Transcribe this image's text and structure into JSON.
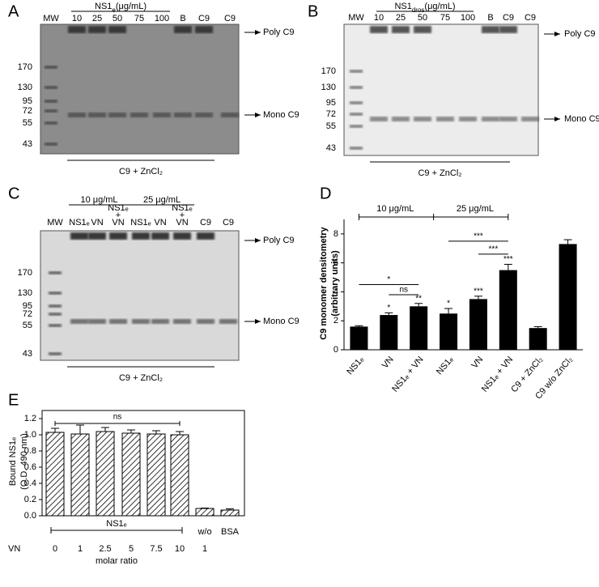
{
  "gels": [
    {
      "panel": "A",
      "headers": [
        [
          "NS1",
          "e",
          "(μg/mL)"
        ]
      ],
      "lanes": [
        [
          "MW"
        ],
        [
          "10"
        ],
        [
          "25"
        ],
        [
          "50"
        ],
        [
          "75"
        ],
        [
          "100"
        ],
        [
          "B"
        ],
        [
          "C9"
        ],
        [
          "C9"
        ]
      ],
      "markers": [
        "170",
        "130",
        "95",
        "72",
        "55",
        "43"
      ],
      "bands": [
        "Poly C9",
        "Mono C9"
      ],
      "condition": "C9 + ZnCl₂"
    },
    {
      "panel": "B",
      "headers": [
        [
          "NS1",
          "dros",
          "(μg/mL)"
        ]
      ],
      "lanes": [
        [
          "MW"
        ],
        [
          "10"
        ],
        [
          "25"
        ],
        [
          "50"
        ],
        [
          "75"
        ],
        [
          "100"
        ],
        [
          "B"
        ],
        [
          "C9"
        ],
        [
          "C9"
        ]
      ],
      "markers": [
        "170",
        "130",
        "95",
        "72",
        "55",
        "43"
      ],
      "bands": [
        "Poly C9",
        "Mono C9"
      ],
      "condition": "C9 + ZnCl₂"
    },
    {
      "panel": "C",
      "headers": [
        [
          "10 μg/mL"
        ],
        [
          "25 μg/mL"
        ]
      ],
      "lanes": [
        [
          "MW"
        ],
        [
          "NS1ₑ"
        ],
        [
          "VN"
        ],
        [
          "NS1ₑ",
          "+",
          "VN"
        ],
        [
          "NS1ₑ"
        ],
        [
          "VN"
        ],
        [
          "NS1ₑ",
          "+",
          "VN"
        ],
        [
          "C9"
        ],
        [
          "C9"
        ]
      ],
      "markers": [
        "170",
        "130",
        "95",
        "72",
        "55",
        "43"
      ],
      "bands": [
        "Poly C9",
        "Mono C9"
      ],
      "condition": "C9 + ZnCl₂"
    }
  ],
  "chart_data": [
    {
      "type": "bar",
      "panel": "D",
      "ylabel": [
        "C9 monomer densitometry",
        "(arbitrary units)"
      ],
      "categories": [
        "NS1ₑ",
        "VN",
        "NS1ₑ + VN",
        "NS1ₑ",
        "VN",
        "NS1ₑ + VN",
        "C9 + ZnCl₂",
        "C9 w/o ZnCl₂"
      ],
      "values": [
        1.6,
        2.4,
        3.0,
        2.5,
        3.5,
        5.5,
        1.5,
        7.3
      ],
      "errors": [
        0.06,
        0.15,
        0.2,
        0.35,
        0.2,
        0.4,
        0.1,
        0.3
      ],
      "value_labels": [
        null,
        "*",
        "**",
        "*",
        "***",
        "***",
        null,
        null
      ],
      "group_labels": [
        "10 μg/mL",
        "25 μg/mL"
      ],
      "comparison_labels": [
        "*",
        "ns",
        "***",
        "***"
      ],
      "color": "#000000",
      "ylim": [
        0,
        9
      ],
      "yticks": [
        0,
        2,
        4,
        6,
        8
      ]
    },
    {
      "type": "hatched-bar",
      "panel": "E",
      "ylabel": [
        "Bound NS1ₑ",
        "(O.D. 490 nm)"
      ],
      "categories": [
        "0",
        "1",
        "2.5",
        "5",
        "7.5",
        "10",
        "1",
        null
      ],
      "values": [
        1.03,
        1.01,
        1.04,
        1.02,
        1.01,
        1.0,
        0.09,
        0.07
      ],
      "errors": [
        0.05,
        0.11,
        0.05,
        0.04,
        0.04,
        0.04,
        0.005,
        0.015
      ],
      "group_labels": [
        "NS1ₑ",
        "w/o",
        "BSA"
      ],
      "comparison_labels": [
        "ns"
      ],
      "row_label": "VN",
      "axis_note": "molar ratio",
      "color": "#000000",
      "ylim": [
        0,
        1.3
      ],
      "yticks": [
        {
          "value": 0,
          "label": "0.0"
        },
        0.2,
        0.4,
        0.6,
        0.8,
        {
          "value": 1,
          "label": "1.0"
        },
        1.2
      ]
    }
  ]
}
